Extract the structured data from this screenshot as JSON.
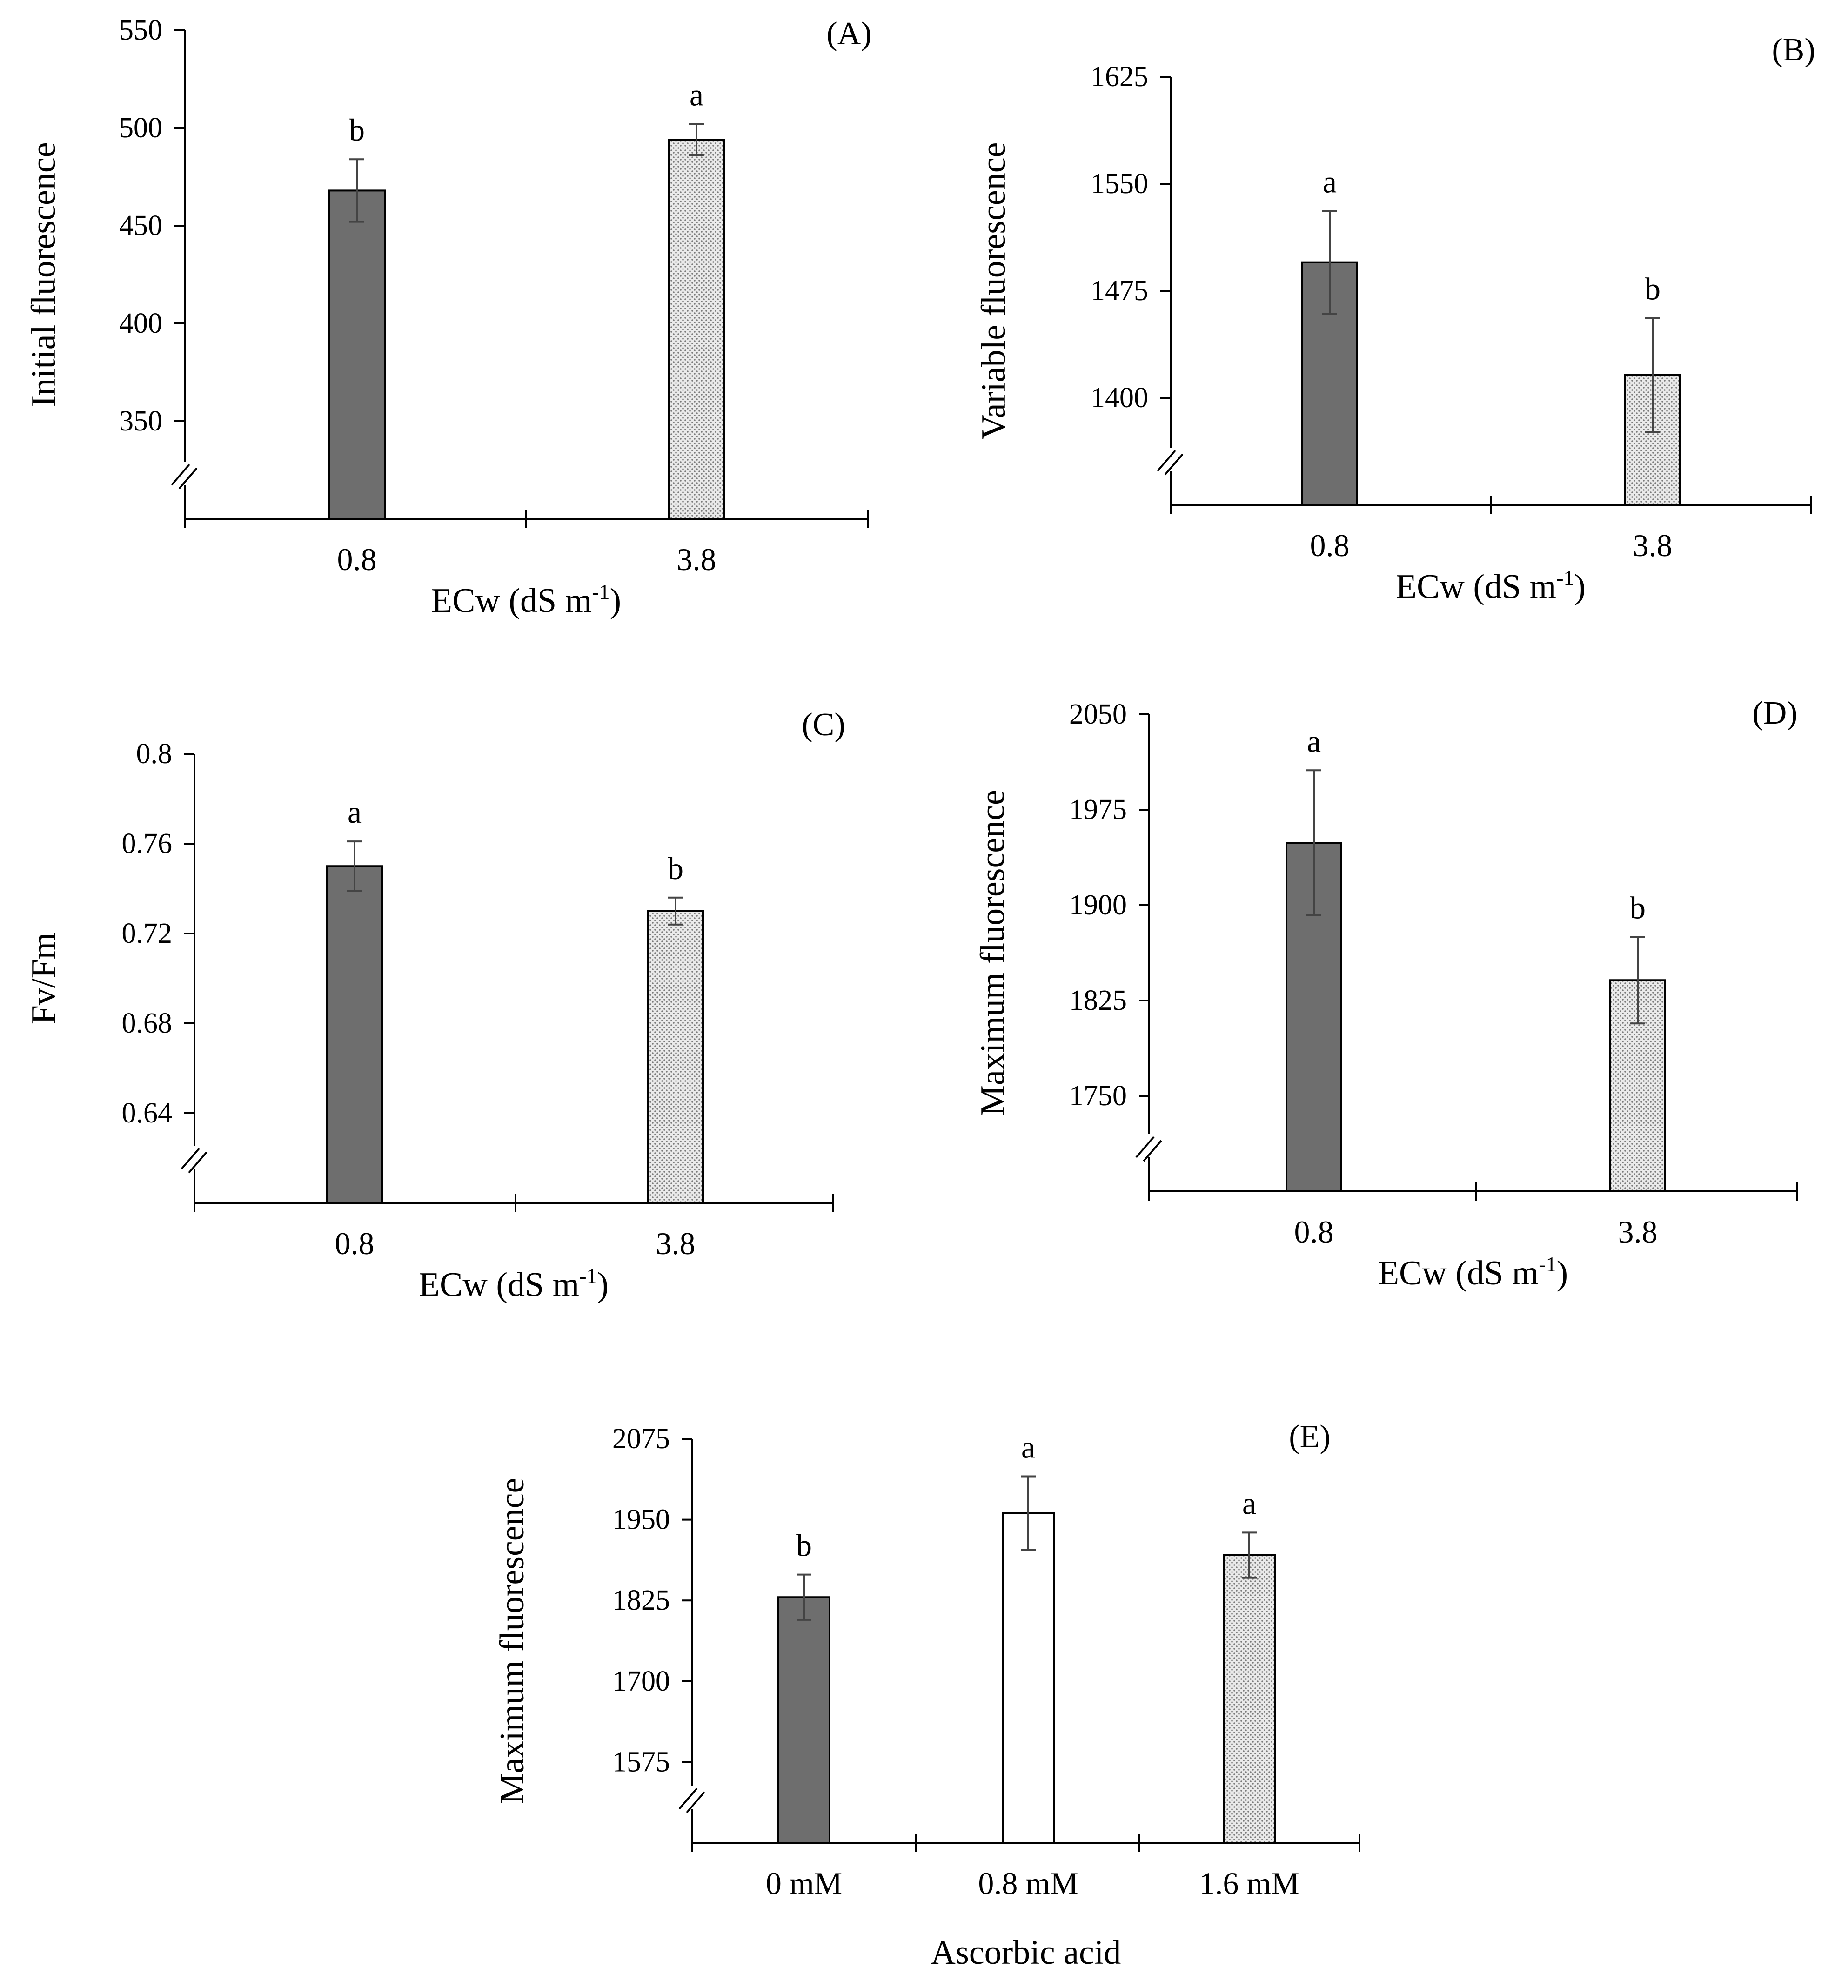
{
  "chart_data": [
    {
      "type": "bar",
      "panel": "(A)",
      "categories": [
        "0.8",
        "3.8"
      ],
      "values": [
        468,
        494
      ],
      "errors": [
        16,
        8
      ],
      "letters": [
        "b",
        "a"
      ],
      "fills": [
        "dark",
        "dotted"
      ],
      "xlabel": "ECw (dS m",
      "xlabel_sup": "-1",
      "xlabel_close": ")",
      "ylabel": "Initial fluorescence",
      "yticks": [
        "350",
        "400",
        "450",
        "500",
        "550"
      ],
      "ylim": [
        300,
        550
      ],
      "axis_break": true
    },
    {
      "type": "bar",
      "panel": "(B)",
      "categories": [
        "0.8",
        "3.8"
      ],
      "values": [
        1495,
        1416
      ],
      "errors": [
        36,
        40
      ],
      "letters": [
        "a",
        "b"
      ],
      "fills": [
        "dark",
        "dotted"
      ],
      "xlabel": "ECw (dS m",
      "xlabel_sup": "-1",
      "xlabel_close": ")",
      "ylabel": "Variable fluorescence",
      "yticks": [
        "1400",
        "1475",
        "1550",
        "1625"
      ],
      "ylim": [
        1325,
        1625
      ],
      "axis_break": true
    },
    {
      "type": "bar",
      "panel": "(C)",
      "categories": [
        "0.8",
        "3.8"
      ],
      "values": [
        0.75,
        0.73
      ],
      "errors": [
        0.011,
        0.006
      ],
      "letters": [
        "a",
        "b"
      ],
      "fills": [
        "dark",
        "dotted"
      ],
      "xlabel": "ECw (dS m",
      "xlabel_sup": "-1",
      "xlabel_close": ")",
      "ylabel": "Fv/Fm",
      "yticks": [
        "0.64",
        "0.68",
        "0.72",
        "0.76",
        "0.8"
      ],
      "ylim": [
        0.6,
        0.8
      ],
      "axis_break": true
    },
    {
      "type": "bar",
      "panel": "(D)",
      "categories": [
        "0.8",
        "3.8"
      ],
      "values": [
        1949,
        1841
      ],
      "errors": [
        57,
        34
      ],
      "letters": [
        "a",
        "b"
      ],
      "fills": [
        "dark",
        "dotted"
      ],
      "xlabel": "ECw (dS m",
      "xlabel_sup": "-1",
      "xlabel_close": ")",
      "ylabel": "Maximum fluorescence",
      "yticks": [
        "1750",
        "1825",
        "1900",
        "1975",
        "2050"
      ],
      "ylim": [
        1675,
        2050
      ],
      "axis_break": true
    },
    {
      "type": "bar",
      "panel": "(E)",
      "categories": [
        "0 mM",
        "0.8 mM",
        "1.6 mM"
      ],
      "values": [
        1830,
        1960,
        1895
      ],
      "errors": [
        35,
        57,
        35
      ],
      "letters": [
        "b",
        "a",
        "a"
      ],
      "fills": [
        "dark",
        "white",
        "dotted"
      ],
      "xlabel": "Ascorbic acid",
      "xlabel_sup": "",
      "xlabel_close": "",
      "ylabel": "Maximum fluorescence",
      "yticks": [
        "1575",
        "1700",
        "1825",
        "1950",
        "2075"
      ],
      "ylim": [
        1450,
        2075
      ],
      "axis_break": true
    }
  ],
  "colors": {
    "dark_bar": "#6e6e6e",
    "dotted_bar_bg": "#eaeaea",
    "dotted_bar_dot": "#7a7a7a",
    "white_bar": "#ffffff",
    "axis": "#000000"
  }
}
